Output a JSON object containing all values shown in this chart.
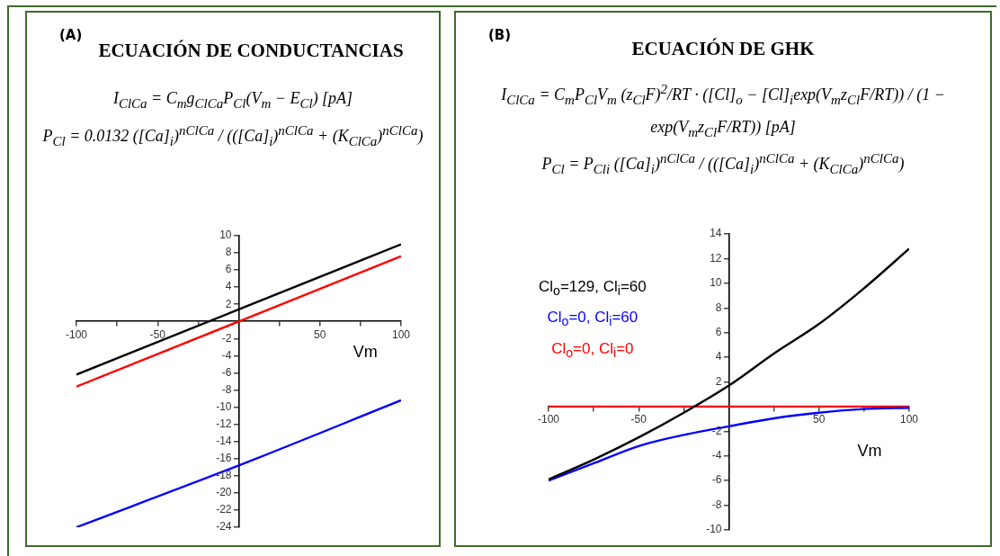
{
  "chart_data": [
    {
      "type": "line",
      "title": "ECUACIÓN DE CONDUCTANCIAS",
      "annotations": [
        "(A)",
        "I$_{ClCa}$ = C$_{m}$g$_{ClCa}$P$_{Cl}$(V$_{m}$ − E$_{Cl}$)  [pA]",
        "P$_{Cl}$ = 0.0132 ([Ca]$_{i}$)$^{nClCa}$ / (([Ca]$_{i}$)$^{nClCa}$ + (K$_{ClCa}$)$^{nClCa}$)"
      ],
      "xlabel": "Vm",
      "xlim": [
        -100,
        100
      ],
      "ylim": [
        -24,
        10
      ],
      "xticks": [
        -100,
        {
          "value": -75,
          "label": null
        },
        -50,
        {
          "value": -25,
          "label": null
        },
        {
          "value": 25,
          "label": null
        },
        50,
        {
          "value": 75,
          "label": null
        },
        100
      ],
      "yticks": [
        -24,
        -22,
        -20,
        -18,
        -16,
        -14,
        -12,
        -10,
        -8,
        -6,
        -4,
        -2,
        2,
        4,
        6,
        8,
        10
      ],
      "grid": false,
      "marker": "none",
      "x": [
        -100,
        0,
        100
      ],
      "series": [
        {
          "color": "#000000",
          "values": [
            -6.2,
            1.4,
            9.0
          ]
        },
        {
          "color": "#ff0000",
          "values": [
            -7.6,
            0,
            7.6
          ]
        },
        {
          "color": "#0000ff",
          "values": [
            -24,
            -16.8,
            -9.2
          ]
        }
      ]
    },
    {
      "type": "line",
      "title": "ECUACIÓN DE GHK",
      "annotations": [
        "(B)",
        "I$_{ClCa}$ = C$_{m}$P$_{Cl}$V$_{m}$ (z$_{Cl}$F)$^{2}$/RT · ([Cl]$_{o}$ − [Cl]$_{i}$exp(V$_{m}$z$_{Cl}$F/RT)) / (1 − exp(V$_{m}$z$_{Cl}$F/RT))  [pA]",
        "P$_{Cl}$ = P$_{Cli}$ ([Ca]$_{i}$)$^{nClCa}$ / (([Ca]$_{i}$)$^{nClCa}$ + (K$_{ClCa}$)$^{nClCa}$)"
      ],
      "xlabel": "Vm",
      "xlim": [
        -100,
        100
      ],
      "ylim": [
        -10,
        14
      ],
      "xticks": [
        -100,
        {
          "value": -75,
          "label": null
        },
        -50,
        {
          "value": -25,
          "label": null
        },
        {
          "value": 25,
          "label": null
        },
        50,
        {
          "value": 75,
          "label": null
        },
        100
      ],
      "yticks": [
        -10,
        -8,
        -6,
        -4,
        -2,
        2,
        4,
        6,
        8,
        10,
        12,
        14
      ],
      "grid": false,
      "marker": "none",
      "legend": "top left",
      "x": [
        -100,
        -75,
        -50,
        -25,
        0,
        25,
        50,
        75,
        100
      ],
      "series": [
        {
          "name": "Cl$_{o}$=129, Cl$_{i}$=60",
          "color": "#000000",
          "values": [
            -5.9,
            -4.3,
            -2.5,
            -0.5,
            1.7,
            4.3,
            6.7,
            9.6,
            12.8
          ]
        },
        {
          "name": "Cl$_{o}$=0, Cl$_{i}$=60",
          "color": "#0000ff",
          "values": [
            -6.0,
            -4.6,
            -3.2,
            -2.3,
            -1.6,
            -0.95,
            -0.5,
            -0.2,
            -0.1
          ]
        },
        {
          "name": "Cl$_{o}$=0, Cl$_{i}$=0",
          "color": "#ff0000",
          "values": [
            0,
            0,
            0,
            0,
            0,
            0,
            0,
            0,
            0
          ]
        }
      ]
    }
  ]
}
